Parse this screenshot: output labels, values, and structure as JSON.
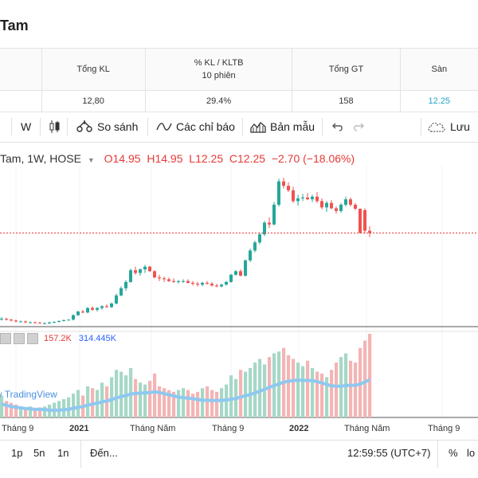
{
  "title": "Tam",
  "stats": {
    "headers": [
      "Tổng KL",
      "% KL / KLTB",
      "Tổng GT",
      "Sàn"
    ],
    "subheader": "10 phiên",
    "values": [
      "12,80",
      "29.4%",
      "158",
      "12.25"
    ],
    "floor_color": "#26a6c9"
  },
  "toolbar": {
    "interval": "W",
    "compare": "So sánh",
    "indicators": "Các chỉ báo",
    "templates": "Bản mẫu",
    "save": "Lưu"
  },
  "legend": {
    "symbol": "Tam, 1W, HOSE",
    "open": "O14.95",
    "high": "H14.95",
    "low": "L12.25",
    "close": "C12.25",
    "change": "−2.70 (−18.06%)"
  },
  "volume": {
    "v1": "157.2K",
    "v2": "314.445K"
  },
  "watermark": "by TradingView",
  "xaxis": [
    "Tháng 9",
    "2021",
    "Tháng Năm",
    "Tháng 9",
    "2022",
    "Tháng Năm",
    "Tháng 9"
  ],
  "bottom": {
    "p1": "1p",
    "p2": "5n",
    "p3": "1n",
    "goto": "Đến...",
    "time": "12:59:55 (UTC+7)",
    "percent": "%",
    "log": "lo"
  },
  "colors": {
    "up": "#26a69a",
    "down": "#ef5350",
    "ma": "#8fc8f0",
    "vol_up": "#a5d8c6",
    "vol_down": "#f4b4b4"
  },
  "chart_data": {
    "type": "candlestick",
    "interval": "1W",
    "exchange": "HOSE",
    "ohlc": [
      [
        2.6,
        2.9,
        2.5,
        2.7
      ],
      [
        2.7,
        2.8,
        2.5,
        2.6
      ],
      [
        2.6,
        2.7,
        2.4,
        2.5
      ],
      [
        2.5,
        2.6,
        2.3,
        2.4
      ],
      [
        2.4,
        2.5,
        2.3,
        2.4
      ],
      [
        2.4,
        2.5,
        2.2,
        2.3
      ],
      [
        2.3,
        2.4,
        2.2,
        2.3
      ],
      [
        2.3,
        2.4,
        2.2,
        2.25
      ],
      [
        2.25,
        2.35,
        2.15,
        2.2
      ],
      [
        2.2,
        2.3,
        2.1,
        2.2
      ],
      [
        2.2,
        2.35,
        2.1,
        2.3
      ],
      [
        2.3,
        2.4,
        2.2,
        2.35
      ],
      [
        2.35,
        2.5,
        2.3,
        2.45
      ],
      [
        2.45,
        2.6,
        2.4,
        2.55
      ],
      [
        2.55,
        2.65,
        2.5,
        2.6
      ],
      [
        2.6,
        3.2,
        2.5,
        3.1
      ],
      [
        3.1,
        3.6,
        3.0,
        3.5
      ],
      [
        3.5,
        3.7,
        3.3,
        3.4
      ],
      [
        3.4,
        4.0,
        3.3,
        3.9
      ],
      [
        3.9,
        4.1,
        3.6,
        3.7
      ],
      [
        3.7,
        4.0,
        3.5,
        3.9
      ],
      [
        3.9,
        4.2,
        3.7,
        4.1
      ],
      [
        4.1,
        4.3,
        3.9,
        4.0
      ],
      [
        4.0,
        4.5,
        3.9,
        4.4
      ],
      [
        4.4,
        5.5,
        4.3,
        5.3
      ],
      [
        5.3,
        6.3,
        5.2,
        6.1
      ],
      [
        6.1,
        7.0,
        5.8,
        6.8
      ],
      [
        6.8,
        8.3,
        6.7,
        8.1
      ],
      [
        8.1,
        8.5,
        7.6,
        7.8
      ],
      [
        7.8,
        8.3,
        7.5,
        8.2
      ],
      [
        8.2,
        8.7,
        7.8,
        8.5
      ],
      [
        8.5,
        8.6,
        7.9,
        8.0
      ],
      [
        8.0,
        8.1,
        7.2,
        7.3
      ],
      [
        7.3,
        7.6,
        6.9,
        7.2
      ],
      [
        7.2,
        7.4,
        6.8,
        7.1
      ],
      [
        7.1,
        7.3,
        6.8,
        6.9
      ],
      [
        6.9,
        7.2,
        6.7,
        6.8
      ],
      [
        6.8,
        7.0,
        6.6,
        6.9
      ],
      [
        6.9,
        7.1,
        6.7,
        6.9
      ],
      [
        6.9,
        7.1,
        6.6,
        6.7
      ],
      [
        6.7,
        6.9,
        6.4,
        6.6
      ],
      [
        6.6,
        6.8,
        6.3,
        6.5
      ],
      [
        6.5,
        6.8,
        6.3,
        6.7
      ],
      [
        6.7,
        6.9,
        6.5,
        6.6
      ],
      [
        6.6,
        6.8,
        6.3,
        6.4
      ],
      [
        6.4,
        6.6,
        6.2,
        6.3
      ],
      [
        6.3,
        6.6,
        6.2,
        6.5
      ],
      [
        6.5,
        6.9,
        6.4,
        6.8
      ],
      [
        6.8,
        7.7,
        6.7,
        7.6
      ],
      [
        7.6,
        8.1,
        7.5,
        8.0
      ],
      [
        8.0,
        8.2,
        7.4,
        7.5
      ],
      [
        7.5,
        9.3,
        7.4,
        9.2
      ],
      [
        9.2,
        10.5,
        9.0,
        10.3
      ],
      [
        10.3,
        11.4,
        10.1,
        11.2
      ],
      [
        11.2,
        12.3,
        11.0,
        12.1
      ],
      [
        12.1,
        13.6,
        11.9,
        13.4
      ],
      [
        13.4,
        14.0,
        12.8,
        13.2
      ],
      [
        13.2,
        15.7,
        13.1,
        15.4
      ],
      [
        15.4,
        18.3,
        15.2,
        18.0
      ],
      [
        18.0,
        18.4,
        17.2,
        17.5
      ],
      [
        17.5,
        17.9,
        16.8,
        17.0
      ],
      [
        17.0,
        17.4,
        15.6,
        15.8
      ],
      [
        15.8,
        16.5,
        15.3,
        16.1
      ],
      [
        16.1,
        16.6,
        15.8,
        16.2
      ],
      [
        16.2,
        16.7,
        15.9,
        16.0
      ],
      [
        16.0,
        16.5,
        15.7,
        16.3
      ],
      [
        16.3,
        16.8,
        15.6,
        15.8
      ],
      [
        15.8,
        16.1,
        14.9,
        15.1
      ],
      [
        15.1,
        15.8,
        14.6,
        15.6
      ],
      [
        15.6,
        15.9,
        14.9,
        15.0
      ],
      [
        15.0,
        15.2,
        14.4,
        14.7
      ],
      [
        14.7,
        15.6,
        14.5,
        15.4
      ],
      [
        15.4,
        16.3,
        15.2,
        16.0
      ],
      [
        16.0,
        16.2,
        15.2,
        15.4
      ],
      [
        15.4,
        15.6,
        14.8,
        14.95
      ],
      [
        14.95,
        14.95,
        12.25,
        12.25
      ],
      [
        14.8,
        15.0,
        12.2,
        12.5
      ],
      [
        12.5,
        13.0,
        11.8,
        12.25
      ]
    ],
    "volume": [
      120,
      90,
      80,
      70,
      60,
      50,
      60,
      50,
      55,
      60,
      70,
      80,
      90,
      100,
      110,
      130,
      150,
      120,
      170,
      160,
      150,
      190,
      170,
      220,
      260,
      250,
      230,
      270,
      210,
      190,
      180,
      200,
      240,
      170,
      160,
      150,
      140,
      150,
      160,
      150,
      130,
      140,
      160,
      170,
      150,
      140,
      160,
      180,
      230,
      210,
      260,
      250,
      270,
      300,
      320,
      290,
      330,
      350,
      360,
      380,
      340,
      320,
      300,
      280,
      310,
      270,
      250,
      240,
      220,
      260,
      300,
      330,
      350,
      310,
      300,
      380,
      420,
      457
    ],
    "last_price": 12.25
  }
}
